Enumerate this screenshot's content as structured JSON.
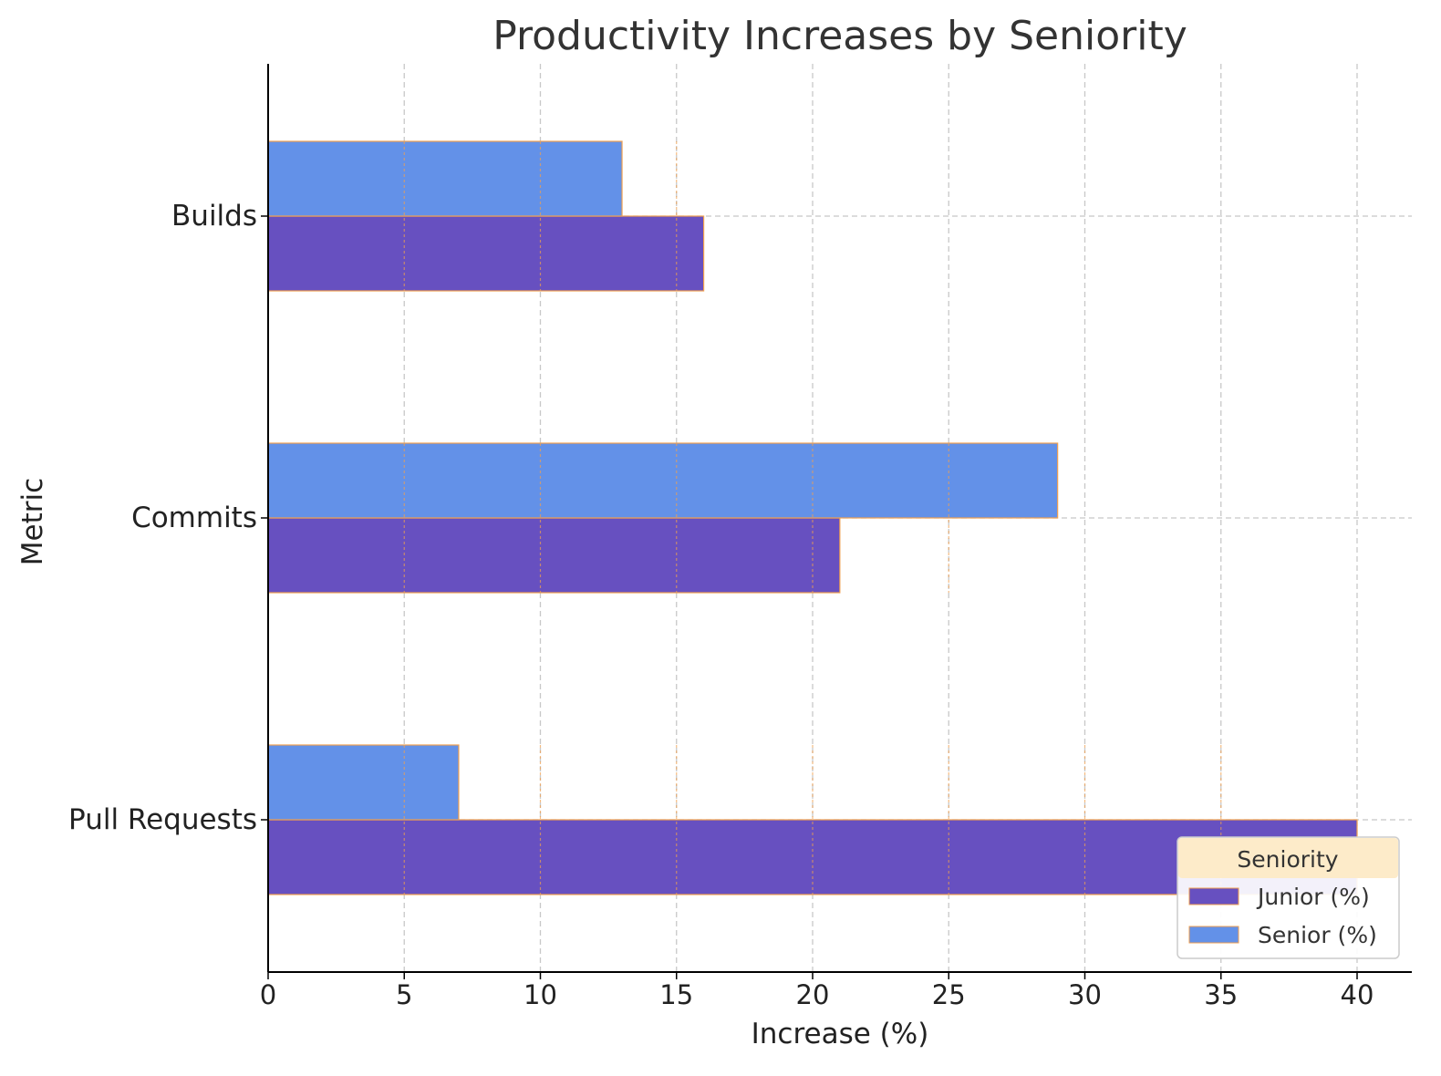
{
  "chart_data": {
    "type": "bar",
    "orientation": "horizontal",
    "title": "Productivity Increases by Seniority",
    "xlabel": "Increase (%)",
    "ylabel": "Metric",
    "categories": [
      "Builds",
      "Commits",
      "Pull Requests"
    ],
    "series": [
      {
        "name": "Junior (%)",
        "values": [
          16,
          21,
          40
        ],
        "color": "#6750c0"
      },
      {
        "name": "Senior (%)",
        "values": [
          13,
          29,
          7
        ],
        "color": "#6391e8"
      }
    ],
    "xlim": [
      0,
      42
    ],
    "xticks": [
      0,
      5,
      10,
      15,
      20,
      25,
      30,
      35,
      40
    ],
    "grid": true,
    "legend": {
      "title": "Seniority",
      "placement": "bottom-right"
    },
    "bar_edge_color": "#f0a050",
    "grid_color": "#c8c8c8",
    "legend_title_bg": "#fdebc9"
  }
}
